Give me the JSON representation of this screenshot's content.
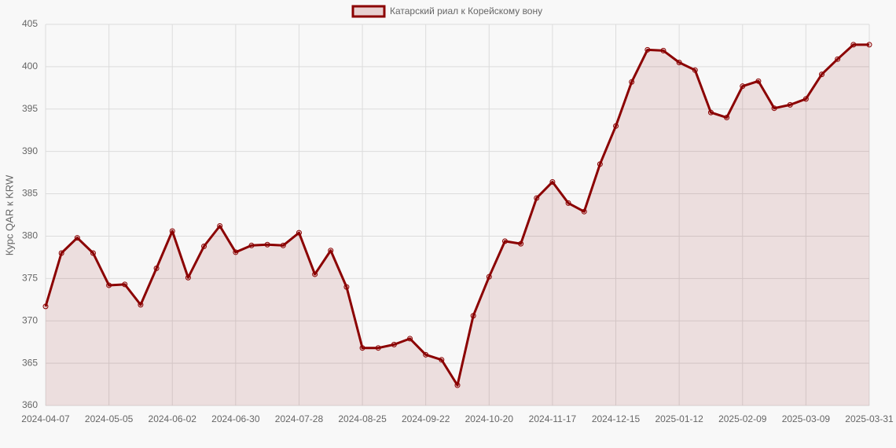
{
  "chart_data": {
    "type": "line",
    "y_label": "Курс QAR к KRW",
    "categories": [
      "2024-04-07",
      null,
      null,
      null,
      "2024-05-05",
      null,
      null,
      null,
      "2024-06-02",
      null,
      null,
      null,
      "2024-06-30",
      null,
      null,
      null,
      "2024-07-28",
      null,
      null,
      null,
      "2024-08-25",
      null,
      null,
      null,
      "2024-09-22",
      null,
      null,
      null,
      "2024-10-20",
      null,
      null,
      null,
      "2024-11-17",
      null,
      null,
      null,
      "2024-12-15",
      null,
      null,
      null,
      "2025-01-12",
      null,
      null,
      null,
      "2025-02-09",
      null,
      null,
      null,
      "2025-03-09",
      null,
      null,
      null,
      "2025-03-31"
    ],
    "series": [
      {
        "name": "Катарский риал к Корейскому вону",
        "color": "#8b0000",
        "fill": "rgba(139,0,0,0.1)",
        "values": [
          371.7,
          378,
          379.8,
          378,
          374.2,
          374.3,
          371.9,
          376.2,
          380.6,
          375.1,
          378.8,
          381.2,
          378.1,
          378.9,
          379,
          378.9,
          380.4,
          375.5,
          378.3,
          374,
          366.8,
          366.8,
          367.2,
          367.9,
          366,
          365.4,
          362.4,
          370.6,
          375.2,
          379.4,
          379.1,
          384.5,
          386.4,
          383.9,
          382.9,
          388.5,
          393,
          398.2,
          402,
          401.9,
          400.5,
          399.6,
          394.6,
          394,
          397.7,
          398.3,
          395.1,
          395.5,
          396.2,
          399.1,
          400.9,
          402.6,
          402.6
        ]
      }
    ],
    "ylim": [
      360,
      405
    ],
    "yticks": [
      360,
      365,
      370,
      375,
      380,
      385,
      390,
      395,
      400,
      405
    ],
    "grid": true
  }
}
